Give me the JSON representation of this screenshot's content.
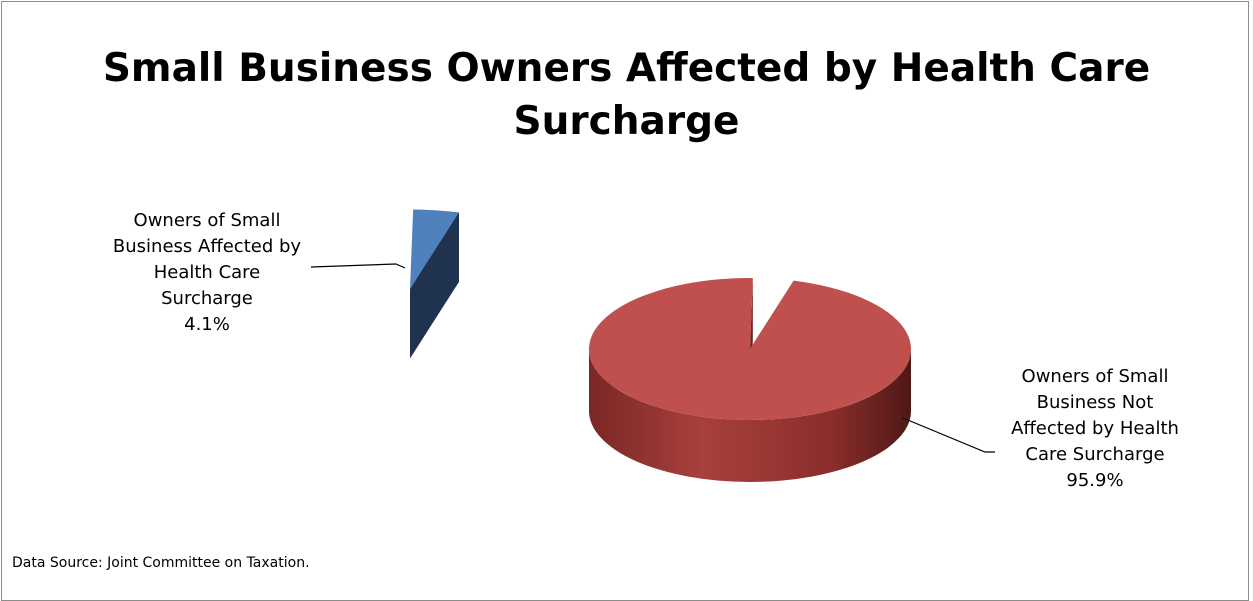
{
  "chart_data": {
    "type": "pie",
    "title": "Small Business Owners Affected by Health Care Surcharge",
    "slices": [
      {
        "label_lines": [
          "Owners of Small",
          "Business Affected by",
          "Health Care",
          "Surcharge"
        ],
        "value_label": "4.1%",
        "value": 4.1,
        "top_color": "#4f81bd",
        "side_color": "#1f3350",
        "exploded": true
      },
      {
        "label_lines": [
          "Owners of Small",
          "Business Not",
          "Affected by Health",
          "Care Surcharge"
        ],
        "value_label": "95.9%",
        "value": 95.9,
        "top_color": "#c0504d",
        "side_color": "#6b2220",
        "exploded": false
      }
    ],
    "legend": "none",
    "style": "3d-pie"
  },
  "footer": {
    "source": "Data Source: Joint Committee on Taxation."
  },
  "colors": {
    "border": "#8c8c8c",
    "leader_line": "#000000"
  }
}
